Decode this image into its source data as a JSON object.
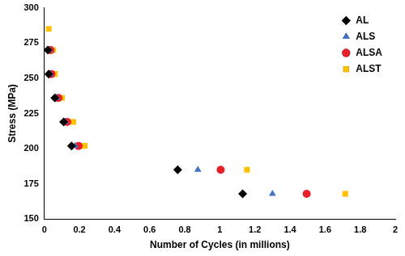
{
  "chart_data": {
    "type": "scatter",
    "x_label": "Number of Cycles (in millions)",
    "y_label": "Stress (MPa)",
    "xlim": [
      0,
      2
    ],
    "xticks": [
      0,
      0.2,
      0.4,
      0.6,
      0.8,
      1,
      1.2,
      1.4,
      1.6,
      1.8,
      2
    ],
    "ylim": [
      150,
      300
    ],
    "yticks": [
      150,
      175,
      200,
      225,
      250,
      275,
      300
    ],
    "grid": false,
    "legend": "upper right",
    "series": [
      {
        "name": "AL",
        "color": "#000000",
        "marker": "diamond",
        "x": [
          0.02,
          0.025,
          0.06,
          0.11,
          0.155,
          0.76,
          1.13
        ],
        "values": [
          270,
          253,
          236,
          219,
          202,
          185,
          168
        ]
      },
      {
        "name": "ALS",
        "color": "#4472c4",
        "marker": "triangle",
        "x": [
          0.03,
          0.035,
          0.07,
          0.12,
          0.175,
          0.875,
          1.3
        ],
        "values": [
          270,
          253,
          236,
          219,
          202,
          185,
          168
        ]
      },
      {
        "name": "ALSA",
        "color": "#e8202a",
        "marker": "circle",
        "x": [
          0.035,
          0.04,
          0.08,
          0.13,
          0.195,
          1.005,
          1.495
        ],
        "values": [
          270,
          253,
          236,
          219,
          202,
          185,
          168
        ]
      },
      {
        "name": "ALST",
        "color": "#ffc000",
        "marker": "square",
        "x": [
          0.025,
          0.05,
          0.06,
          0.1,
          0.165,
          0.23,
          1.155,
          1.715
        ],
        "values": [
          285,
          270,
          253,
          236,
          219,
          202,
          185,
          168
        ]
      }
    ]
  }
}
